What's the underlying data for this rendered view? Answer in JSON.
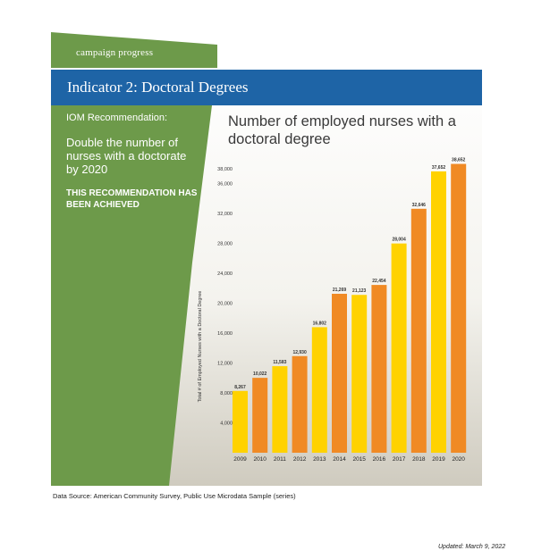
{
  "campaign": {
    "tag": "campaign progress"
  },
  "header": {
    "title": "Indicator 2: Doctoral Degrees"
  },
  "recommendation": {
    "label": "IOM Recommendation:",
    "text": "Double the number of nurses with a doctorate by 2020",
    "status": "THIS RECOMMENDATION HAS BEEN ACHIEVED"
  },
  "chart_data": {
    "type": "bar",
    "title": "Number of employed nurses with a doctoral degree",
    "xlabel": "",
    "ylabel": "Total # of Employed Nurses with a Doctoral Degree",
    "categories": [
      "2009",
      "2010",
      "2011",
      "2012",
      "2013",
      "2014",
      "2015",
      "2016",
      "2017",
      "2018",
      "2019",
      "2020"
    ],
    "values": [
      8267,
      10022,
      11583,
      12930,
      16802,
      21269,
      21123,
      22454,
      28004,
      32646,
      37652,
      38652
    ],
    "data_labels": [
      "8,267",
      "10,022",
      "11,583",
      "12,930",
      "16,802",
      "21,269",
      "21,123",
      "22,454",
      "28,004",
      "32,646",
      "37,652",
      "38,652"
    ],
    "yticks": [
      "4,000",
      "8,000",
      "12,000",
      "16,000",
      "20,000",
      "24,000",
      "28,000",
      "32,000",
      "36,000",
      "38,000"
    ],
    "ytick_values": [
      4000,
      8000,
      12000,
      16000,
      20000,
      24000,
      28000,
      32000,
      36000,
      38000
    ],
    "ylim": [
      0,
      38000
    ],
    "grid": false,
    "colors": {
      "odd_years": "#ffd200",
      "even_years": "#f08a24"
    }
  },
  "colors": {
    "green": "#6d9a4a",
    "blue": "#1e64a6"
  },
  "footer": {
    "source": "Data Source: American Community Survey, Public Use Microdata Sample (series)",
    "updated": "Updated: March 9, 2022"
  }
}
